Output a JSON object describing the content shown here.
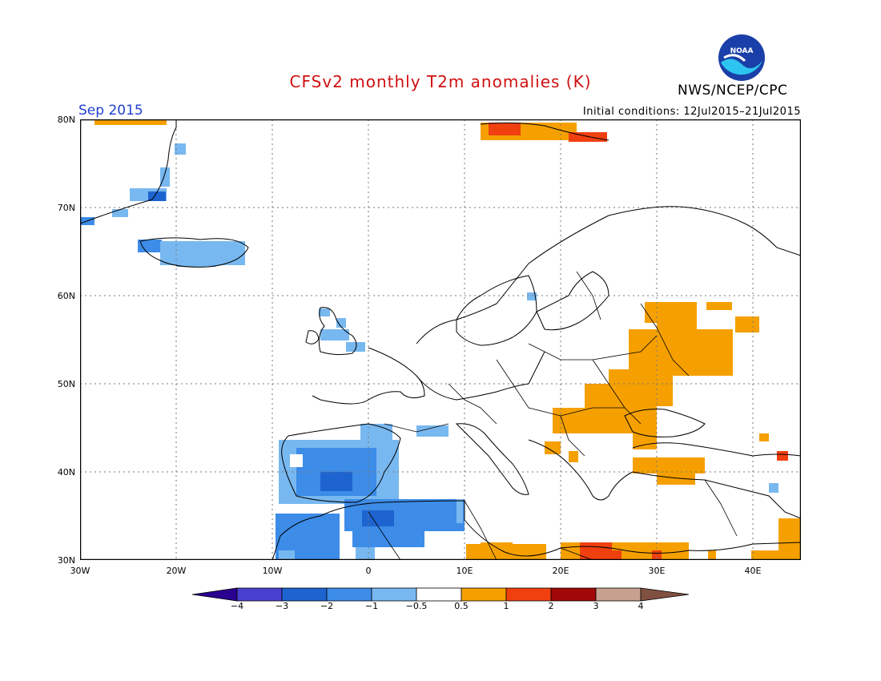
{
  "header": {
    "title": "CFSv2 monthly T2m anomalies (K)",
    "period": "Sep 2015",
    "agency": "NWS/NCEP/CPC",
    "initial_conditions": "Initial conditions: 12Jul2015–21Jul2015",
    "logo_text": "NOAA"
  },
  "map": {
    "lat_labels": [
      "80N",
      "70N",
      "60N",
      "50N",
      "40N",
      "30N"
    ],
    "lon_labels": [
      "30W",
      "20W",
      "10W",
      "0",
      "10E",
      "20E",
      "30E",
      "40E"
    ],
    "lat_range": [
      30,
      80
    ],
    "lon_range": [
      -30,
      45
    ],
    "anomaly_regions": [
      {
        "name": "greenland-cold",
        "level": -1
      },
      {
        "name": "iceland-cold",
        "level": -1
      },
      {
        "name": "iberia-cold",
        "level": -2
      },
      {
        "name": "north-africa-cold",
        "level": -2
      },
      {
        "name": "russia-warm",
        "level": 1
      },
      {
        "name": "ukraine-balkans-warm",
        "level": 1
      },
      {
        "name": "anatolia-warm",
        "level": 1
      },
      {
        "name": "libya-egypt-warm",
        "level": 1
      },
      {
        "name": "svalbard-warm",
        "level": 1
      }
    ]
  },
  "colorbar": {
    "labels": [
      "−4",
      "−3",
      "−2",
      "−1",
      "−0.5",
      "0.5",
      "1",
      "2",
      "3",
      "4"
    ],
    "colors": [
      "#2a0090",
      "#4a40d0",
      "#1e64d0",
      "#3c8ce8",
      "#78b8f0",
      "#ffffff",
      "#f5a000",
      "#f04010",
      "#a00808",
      "#c8a090",
      "#805040"
    ]
  }
}
